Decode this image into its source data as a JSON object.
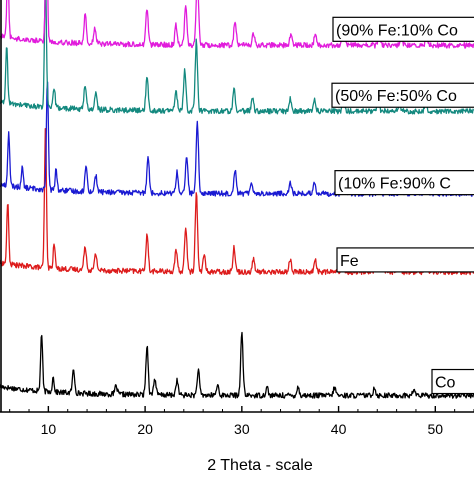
{
  "chart_data": {
    "type": "line",
    "title": "",
    "xlabel": "2 Theta - scale",
    "ylabel": "",
    "xlim": [
      5,
      54
    ],
    "ylim": [
      0,
      100
    ],
    "x_ticks": [
      10,
      20,
      30,
      40,
      50
    ],
    "grid": false,
    "legend": "labels at right end of each trace",
    "series": [
      {
        "name": "Co",
        "color": "#000000",
        "baseline": 4,
        "peaks": [
          [
            9.3,
            14
          ],
          [
            10.5,
            3.5
          ],
          [
            12.6,
            5.5
          ],
          [
            17.0,
            2
          ],
          [
            20.2,
            12
          ],
          [
            21.0,
            4
          ],
          [
            23.3,
            3.5
          ],
          [
            25.5,
            6
          ],
          [
            27.5,
            2.5
          ],
          [
            30.0,
            15
          ],
          [
            32.6,
            2
          ],
          [
            35.8,
            2
          ],
          [
            39.6,
            2
          ],
          [
            43.7,
            2
          ],
          [
            47.8,
            1.5
          ]
        ]
      },
      {
        "name": "Fe",
        "color": "#dd1c1c",
        "baseline": 34,
        "peaks": [
          [
            5.8,
            15
          ],
          [
            9.7,
            34
          ],
          [
            10.6,
            6
          ],
          [
            13.8,
            6
          ],
          [
            14.9,
            4
          ],
          [
            20.2,
            9
          ],
          [
            23.2,
            5
          ],
          [
            24.2,
            11
          ],
          [
            25.3,
            19
          ],
          [
            26.1,
            4
          ],
          [
            29.2,
            6
          ],
          [
            31.2,
            3
          ],
          [
            35.0,
            3
          ],
          [
            37.6,
            3
          ],
          [
            40.4,
            2.5
          ],
          [
            44.1,
            3
          ],
          [
            46.3,
            2
          ],
          [
            49.0,
            2
          ]
        ]
      },
      {
        "name": "(10% Fe:90% C",
        "color": "#1a1ad2",
        "baseline": 53,
        "peaks": [
          [
            5.9,
            13
          ],
          [
            7.3,
            5
          ],
          [
            9.9,
            26
          ],
          [
            10.8,
            5
          ],
          [
            13.9,
            6
          ],
          [
            14.9,
            4
          ],
          [
            20.3,
            9
          ],
          [
            23.3,
            5
          ],
          [
            24.3,
            9
          ],
          [
            25.4,
            17
          ],
          [
            29.3,
            6
          ],
          [
            31.0,
            3
          ],
          [
            35.0,
            3
          ],
          [
            37.5,
            3
          ],
          [
            40.5,
            2.5
          ],
          [
            44.2,
            3
          ],
          [
            46.4,
            2
          ],
          [
            49.0,
            2
          ]
        ]
      },
      {
        "name": "(50% Fe:50% Co",
        "color": "#14897f",
        "baseline": 73,
        "peaks": [
          [
            5.7,
            14
          ],
          [
            9.7,
            31
          ],
          [
            10.6,
            5
          ],
          [
            13.8,
            6
          ],
          [
            14.9,
            4
          ],
          [
            20.2,
            8
          ],
          [
            23.2,
            5
          ],
          [
            24.1,
            10
          ],
          [
            25.3,
            17
          ],
          [
            29.2,
            6
          ],
          [
            31.1,
            3
          ],
          [
            35.0,
            3
          ],
          [
            37.5,
            3
          ],
          [
            40.5,
            2.5
          ],
          [
            44.1,
            3
          ],
          [
            46.3,
            2
          ],
          [
            49.0,
            2
          ]
        ]
      },
      {
        "name": "(90% Fe:10% Co",
        "color": "#e11cdc",
        "baseline": 89,
        "peaks": [
          [
            5.8,
            17
          ],
          [
            9.8,
            33
          ],
          [
            13.8,
            7
          ],
          [
            14.8,
            4
          ],
          [
            20.2,
            9
          ],
          [
            23.2,
            5
          ],
          [
            24.2,
            10
          ],
          [
            25.4,
            18
          ],
          [
            29.3,
            6
          ],
          [
            31.2,
            3
          ],
          [
            35.1,
            3
          ],
          [
            37.6,
            3
          ],
          [
            40.5,
            2.5
          ],
          [
            44.2,
            3
          ],
          [
            46.5,
            2
          ],
          [
            49.1,
            2
          ]
        ]
      }
    ]
  }
}
